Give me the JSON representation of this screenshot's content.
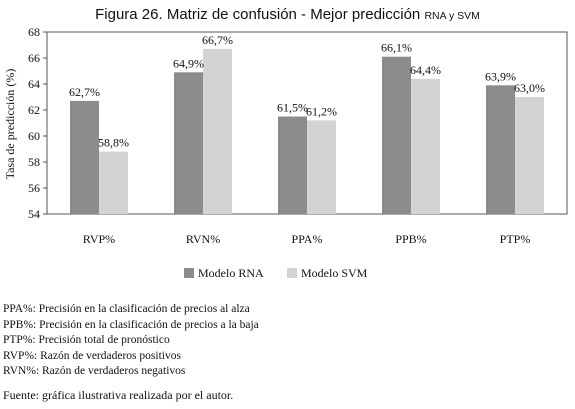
{
  "figure": {
    "title_main": "Figura 26. Matriz de confusión - Mejor predicción ",
    "title_acronyms": "RNA y SVM",
    "notes": [
      "PPA%: Precisión en la clasificación de precios al alza",
      "PPB%: Precisión en la clasificación de precios a la baja",
      "PTP%: Precisión total de pronóstico",
      "RVP%: Razón de verdaderos positivos",
      "RVN%: Razón de verdaderos negativos"
    ],
    "source": "Fuente: gráfica ilustrativa realizada por el autor."
  },
  "chart_data": {
    "type": "bar",
    "ylabel": "Tasa de predicción (%)",
    "xlabel": "",
    "ylim": [
      54,
      68
    ],
    "yticks": [
      54,
      56,
      58,
      60,
      62,
      64,
      66,
      68
    ],
    "categories": [
      "RVP%",
      "RVN%",
      "PPA%",
      "PPB%",
      "PTP%"
    ],
    "series": [
      {
        "name": "Modelo RNA",
        "values": [
          62.7,
          64.9,
          61.5,
          66.1,
          63.9
        ],
        "labels": [
          "62,7%",
          "64,9%",
          "61,5%",
          "66,1%",
          "63,9%"
        ],
        "color": "#8c8c8c"
      },
      {
        "name": "Modelo SVM",
        "values": [
          58.8,
          66.7,
          61.2,
          64.4,
          63.0
        ],
        "labels": [
          "58,8%",
          "66,7%",
          "61,2%",
          "64,4%",
          "63,0%"
        ],
        "color": "#d3d3d3"
      }
    ],
    "grid": false,
    "legend_position": "bottom"
  }
}
